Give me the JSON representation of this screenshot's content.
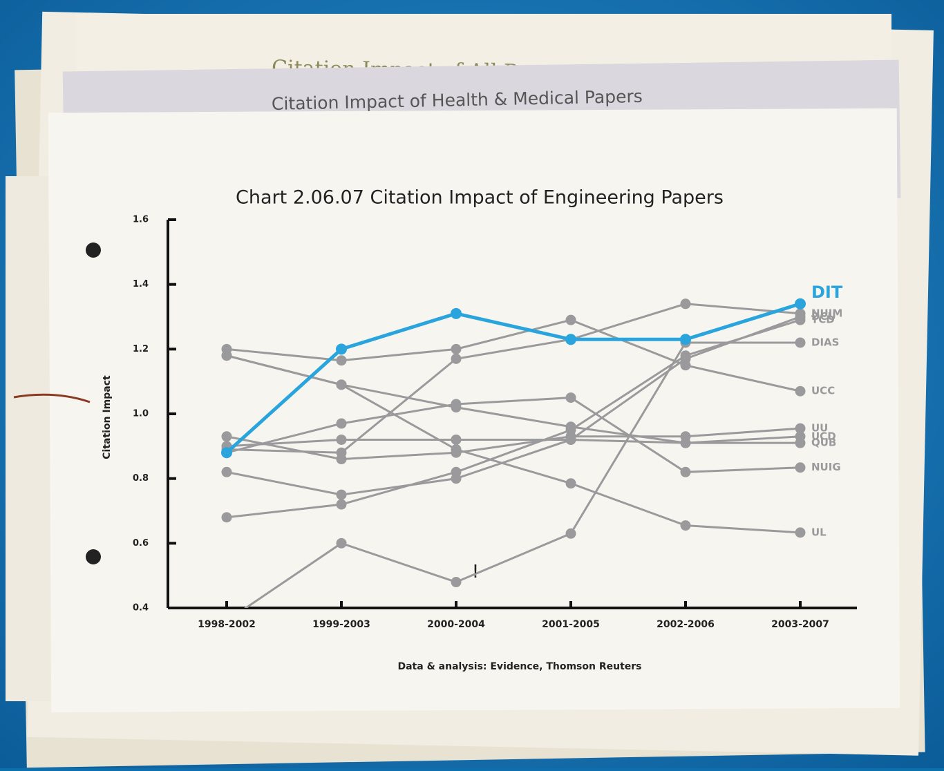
{
  "papers": [
    "Citation Impact of All Papers",
    "Citation Impact of Health & Medical Papers"
  ],
  "chart_data": {
    "type": "line",
    "title": "Chart 2.06.07  Citation Impact of Engineering Papers",
    "y_label": "Citation Impact",
    "source": "Data & analysis: Evidence, Thomson Reuters",
    "annotation": "!",
    "categories": [
      "1998-2002",
      "1999-2003",
      "2000-2004",
      "2001-2005",
      "2002-2006",
      "2003-2007"
    ],
    "ylim": [
      0.4,
      1.6
    ],
    "yticks": [
      0.4,
      0.6,
      0.8,
      {
        "value": 1,
        "label": "1.0"
      },
      1.2,
      1.4,
      1.6
    ],
    "series": [
      {
        "name": "NUIM",
        "color": "#9a9a9c",
        "values": [
          0.89,
          0.88,
          1.17,
          1.23,
          1.34,
          1.31
        ]
      },
      {
        "name": "DCU",
        "color": "#9a9a9c",
        "values": [
          0.82,
          0.75,
          0.8,
          0.92,
          1.17,
          1.3
        ]
      },
      {
        "name": "TCD",
        "color": "#9a9a9c",
        "values": [
          0.68,
          0.72,
          0.82,
          0.95,
          1.18,
          1.29
        ]
      },
      {
        "name": "DIAS",
        "color": "#9a9a9c",
        "values": [
          0.36,
          0.6,
          0.48,
          0.63,
          1.22,
          1.22
        ]
      },
      {
        "name": "UCC",
        "color": "#9a9a9c",
        "values": [
          1.2,
          1.165,
          1.2,
          1.29,
          1.15,
          1.07
        ]
      },
      {
        "name": "UU",
        "color": "#9a9a9c",
        "values": [
          0.93,
          0.86,
          0.88,
          0.93,
          0.93,
          0.955
        ]
      },
      {
        "name": "UCD",
        "color": "#9a9a9c",
        "values": [
          0.9,
          0.92,
          0.92,
          0.92,
          0.91,
          0.93
        ]
      },
      {
        "name": "QUB",
        "color": "#9a9a9c",
        "values": [
          1.18,
          1.09,
          1.02,
          0.96,
          0.91,
          0.91
        ]
      },
      {
        "name": "NUIG",
        "color": "#9a9a9c",
        "values": [
          0.88,
          0.97,
          1.03,
          1.05,
          0.82,
          0.834
        ]
      },
      {
        "name": "UL",
        "color": "#9a9a9c",
        "values": [
          1.18,
          1.09,
          0.89,
          0.785,
          0.655,
          0.633
        ]
      },
      {
        "name": "DIT",
        "color": "#2aa4dd",
        "values": [
          0.88,
          1.2,
          1.31,
          1.23,
          1.23,
          1.34
        ]
      }
    ]
  }
}
